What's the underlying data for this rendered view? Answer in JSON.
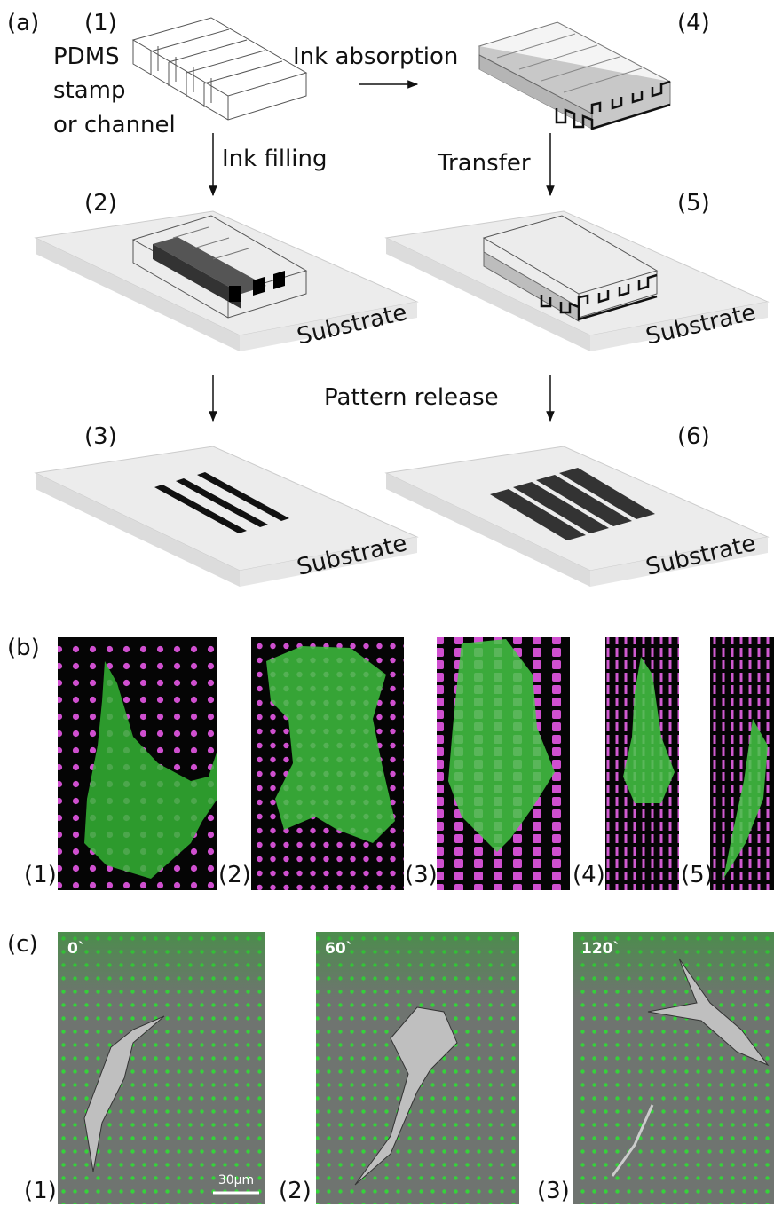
{
  "panel_a": {
    "label": "(a)",
    "step_labels": [
      "(1)",
      "(2)",
      "(3)",
      "(4)",
      "(5)",
      "(6)"
    ],
    "stamp_label": [
      "PDMS",
      "stamp",
      "or channel"
    ],
    "arrow_labels": [
      "Ink absorption",
      "Ink filling",
      "Transfer",
      "Pattern release"
    ],
    "substrate_labels": [
      "Substrate",
      "Substrate",
      "Substrate",
      "Substrate"
    ]
  },
  "panel_b": {
    "label": "(b)",
    "image_labels": [
      "(1)",
      "(2)",
      "(3)",
      "(4)",
      "(5)"
    ]
  },
  "panel_c": {
    "label": "(c)",
    "timestamps": [
      "0`",
      "60`",
      "120`"
    ],
    "scale_bar": "30µm",
    "image_labels": [
      "(1)",
      "(2)",
      "(3)"
    ]
  }
}
